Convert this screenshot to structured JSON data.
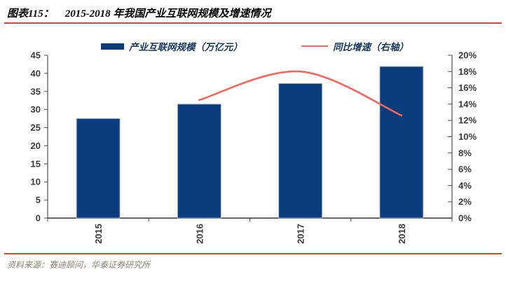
{
  "header": {
    "figure_label": "图表115：",
    "title": "2015-2018 年我国产业互联网规模及增速情况"
  },
  "legend": {
    "items": [
      {
        "label": "产业互联网规模（万亿元）",
        "type": "bar"
      },
      {
        "label": "同比增速（右轴）",
        "type": "line"
      }
    ]
  },
  "chart_data": {
    "type": "bar+line combo",
    "categories": [
      "2015",
      "2016",
      "2017",
      "2018"
    ],
    "series": [
      {
        "name": "产业互联网规模（万亿元）",
        "type": "bar",
        "axis": "left",
        "values": [
          27.5,
          31.5,
          37.2,
          41.9
        ]
      },
      {
        "name": "同比增速（右轴）",
        "type": "line",
        "axis": "right",
        "values": [
          null,
          14.5,
          18.0,
          12.6
        ]
      }
    ],
    "left_axis": {
      "min": 0,
      "max": 45,
      "step": 5,
      "tick_labels": [
        "0",
        "5",
        "10",
        "15",
        "20",
        "25",
        "30",
        "35",
        "40",
        "45"
      ]
    },
    "right_axis": {
      "min": 0,
      "max": 20,
      "step": 2,
      "tick_labels": [
        "0%",
        "2%",
        "4%",
        "6%",
        "8%",
        "10%",
        "12%",
        "14%",
        "16%",
        "18%",
        "20%"
      ]
    },
    "grid": false,
    "legend_position": "top",
    "x_tick_label_rotation": 90
  },
  "colors": {
    "bar_fill": "#0b3d7c",
    "bar_border": "#aebcd6",
    "line_stroke": "#f4665c",
    "accent_rule": "#e0442c",
    "axis_line": "#4f4f4f",
    "tick_label": "#3b3b3b",
    "legend_text": "#17365d",
    "source_text": "#8d8373"
  },
  "footer": {
    "source": "资料来源：赛迪顾问，华泰证券研究所"
  }
}
